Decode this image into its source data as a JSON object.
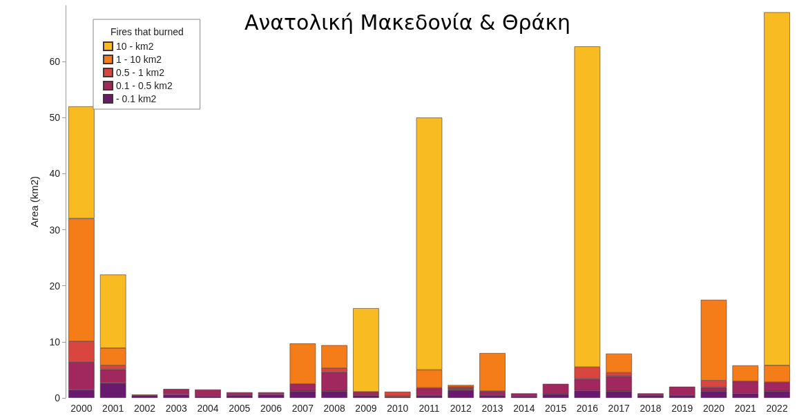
{
  "chart_data": {
    "type": "bar",
    "title": "Ανατολική Μακεδονία & Θράκη",
    "ylabel": "Area (km2)",
    "legend_title": "Fires that burned",
    "stacked": true,
    "legend": "top left",
    "grid": false,
    "categories": [
      "2000",
      "2001",
      "2002",
      "2003",
      "2004",
      "2005",
      "2006",
      "2007",
      "2008",
      "2009",
      "2010",
      "2011",
      "2012",
      "2013",
      "2014",
      "2015",
      "2016",
      "2017",
      "2018",
      "2019",
      "2020",
      "2021",
      "2022"
    ],
    "ylim": [
      0,
      70
    ],
    "yticks": [
      0,
      10,
      20,
      30,
      40,
      50,
      60
    ],
    "series": [
      {
        "name": "- 0.1 km2",
        "color": "#6a1a6e",
        "values": [
          1.5,
          2.7,
          0.4,
          0.6,
          0.3,
          0.5,
          0.6,
          1.2,
          1.2,
          0.4,
          0.2,
          0.5,
          1.4,
          0.5,
          0.3,
          0.7,
          1.3,
          1.2,
          0.5,
          0.5,
          1.2,
          0.8,
          1.2
        ]
      },
      {
        "name": "0.1 - 0.5 km2",
        "color": "#a0285e",
        "values": [
          4.9,
          2.4,
          0.2,
          1.0,
          1.2,
          0.5,
          0.4,
          1.3,
          3.4,
          0.7,
          0.1,
          1.3,
          0.3,
          0.7,
          0.5,
          1.8,
          2.1,
          2.7,
          0.3,
          1.5,
          0.7,
          2.2,
          1.6
        ]
      },
      {
        "name": "0.5 - 1 km2",
        "color": "#d9463f",
        "values": [
          3.7,
          0.7,
          0,
          0,
          0,
          0,
          0,
          0,
          0.7,
          0,
          0.8,
          0,
          0.3,
          0,
          0,
          0,
          2.1,
          0.6,
          0,
          0,
          1.2,
          0,
          0
        ]
      },
      {
        "name": "1 - 10 km2",
        "color": "#f47d1a",
        "values": [
          21.9,
          3.1,
          0,
          0,
          0,
          0,
          0,
          7.2,
          4.1,
          0,
          0,
          3.2,
          0.3,
          6.8,
          0,
          0,
          0,
          3.4,
          0,
          0,
          14.4,
          2.8,
          3.0
        ]
      },
      {
        "name": "10 - km2",
        "color": "#f8bb22",
        "values": [
          20,
          13.1,
          0,
          0,
          0,
          0,
          0,
          0,
          0,
          14.9,
          0,
          45,
          0,
          0,
          0,
          0,
          57.2,
          0,
          0,
          0,
          0,
          0,
          63
        ]
      }
    ]
  }
}
